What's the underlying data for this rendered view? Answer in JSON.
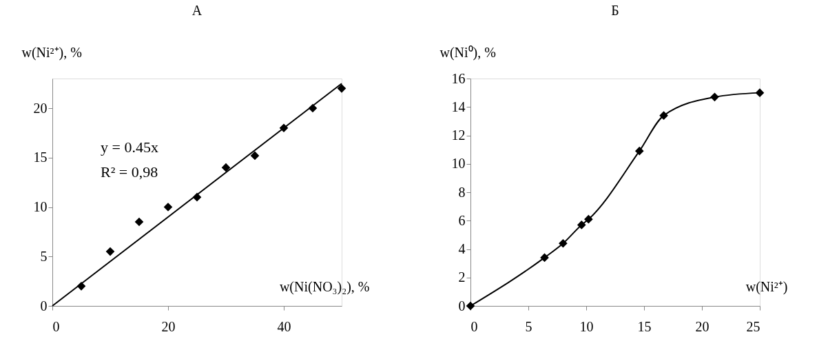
{
  "chart_data": [
    {
      "type": "scatter",
      "title": "А",
      "xlabel": "w(Ni(NO₃)₂), %",
      "ylabel": "w(Ni²⁺), %",
      "xlim": [
        0,
        50
      ],
      "ylim": [
        0,
        23
      ],
      "xticks": [
        0,
        20,
        40
      ],
      "yticks": [
        0,
        5,
        10,
        15,
        20
      ],
      "grid": false,
      "marker": "diamond",
      "annotations": [
        "y = 0.45x",
        "R² = 0,98"
      ],
      "series": [
        {
          "type": "scatter",
          "color": "#000000",
          "x": [
            5,
            10,
            15,
            20,
            25,
            30,
            35,
            40,
            45,
            50
          ],
          "values": [
            2,
            5.5,
            8.5,
            10,
            11,
            14,
            15.2,
            18,
            20,
            22
          ]
        },
        {
          "type": "line",
          "marker": "none",
          "line_style": "solid",
          "color": "#000000",
          "x": [
            0,
            50
          ],
          "values": [
            0,
            22.5
          ]
        }
      ]
    },
    {
      "type": "line",
      "title": "Б",
      "xlabel": "w(Ni²⁺)",
      "ylabel": "w(Ni⁰), %",
      "xlim": [
        0,
        25
      ],
      "ylim": [
        0,
        16
      ],
      "xticks": [
        0,
        5,
        10,
        15,
        20,
        25
      ],
      "yticks": [
        0,
        2,
        4,
        6,
        8,
        10,
        12,
        14,
        16
      ],
      "grid": false,
      "marker": "diamond",
      "line_style": "solid",
      "series": [
        {
          "color": "#000000",
          "x": [
            0,
            6.4,
            8,
            9.6,
            10.2,
            14.6,
            16.7,
            21.1,
            25
          ],
          "values": [
            0,
            3.4,
            4.4,
            5.7,
            6.1,
            10.9,
            13.4,
            14.7,
            15
          ]
        }
      ]
    }
  ]
}
